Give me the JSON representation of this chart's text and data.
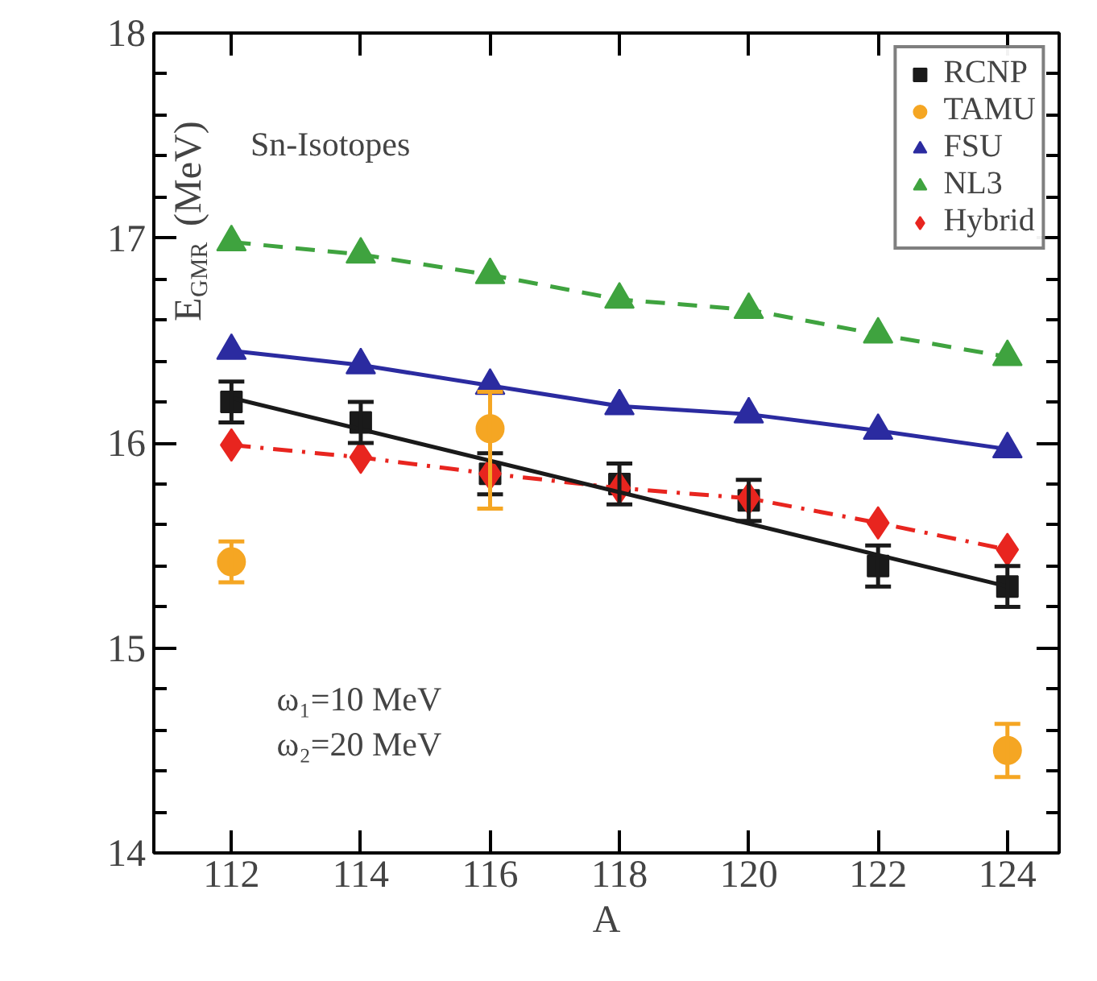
{
  "chart_data": {
    "type": "scatter",
    "xlabel": "A",
    "ylabel": "E$_{GMR}$ (MeV)",
    "x": [
      112,
      114,
      116,
      118,
      120,
      122,
      124
    ],
    "series": [
      {
        "name": "RCNP",
        "color": "#1a1a1a",
        "marker": "square",
        "values": [
          16.2,
          16.1,
          15.85,
          15.8,
          15.72,
          15.4,
          15.3
        ],
        "errors": [
          0.1,
          0.1,
          0.1,
          0.1,
          0.1,
          0.1,
          0.1
        ]
      },
      {
        "name": "TAMU",
        "color": "#f5a623",
        "marker": "circle",
        "values": [
          15.42,
          null,
          16.07,
          null,
          null,
          null,
          14.5
        ],
        "errors": [
          0.1,
          null,
          [
            15.68,
            16.25
          ],
          null,
          null,
          null,
          0.13
        ]
      },
      {
        "name": "FSU",
        "type": "line",
        "color": "#2b2ba0",
        "marker": "triangle",
        "line_style": "solid",
        "values": [
          16.45,
          16.38,
          16.28,
          16.18,
          16.14,
          16.06,
          15.97
        ]
      },
      {
        "name": "NL3",
        "type": "line",
        "color": "#3fa33f",
        "marker": "triangle",
        "line_style": "dashed",
        "values": [
          16.98,
          16.92,
          16.82,
          16.7,
          16.65,
          16.53,
          16.42
        ]
      },
      {
        "name": "Hybrid",
        "type": "line",
        "color": "#e8251f",
        "marker": "diamond",
        "line_style": "dashdot",
        "values": [
          15.99,
          15.93,
          15.85,
          15.78,
          15.73,
          15.61,
          15.48
        ]
      },
      {
        "type": "line",
        "color": "#1a1a1a",
        "marker": "none",
        "line_style": "solid",
        "x": [
          112,
          124
        ],
        "values": [
          16.22,
          15.3
        ]
      }
    ],
    "xlim": [
      110.8,
      124.8
    ],
    "ylim": [
      14,
      18
    ],
    "xticks": [
      112,
      114,
      116,
      118,
      120,
      122,
      124
    ],
    "yticks": [
      14,
      15,
      16,
      17,
      18
    ],
    "grid": false,
    "legend": "top right",
    "annotations": [
      "Sn-Isotopes",
      "ω₁=10 MeV",
      "ω₂=20 MeV"
    ]
  }
}
